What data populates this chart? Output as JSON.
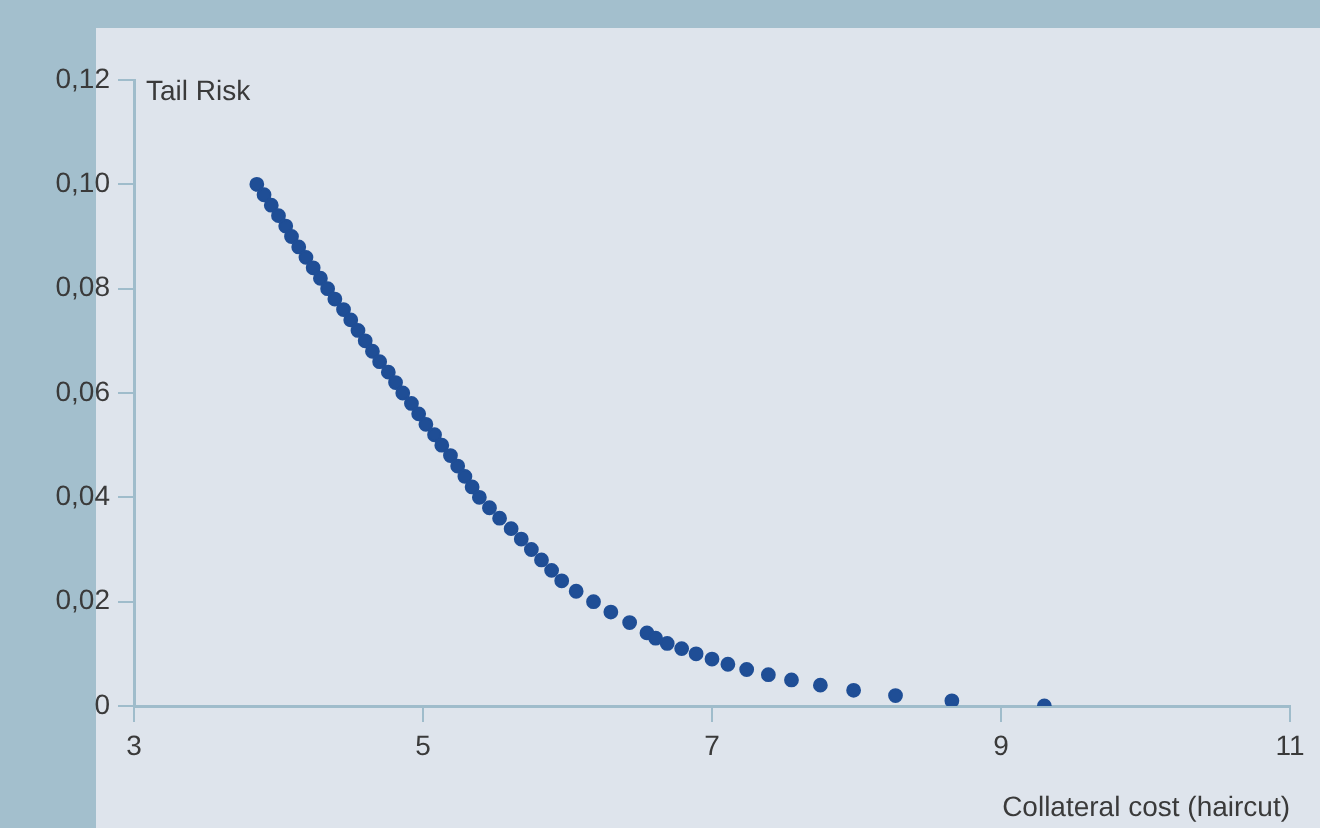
{
  "chart_data": {
    "type": "scatter",
    "xlabel": "Collateral cost (haircut)",
    "ylabel": "Tail Risk",
    "x": [
      3.85,
      3.9,
      3.95,
      4.0,
      4.05,
      4.09,
      4.14,
      4.19,
      4.24,
      4.29,
      4.34,
      4.39,
      4.45,
      4.5,
      4.55,
      4.6,
      4.65,
      4.7,
      4.76,
      4.81,
      4.86,
      4.92,
      4.97,
      5.02,
      5.08,
      5.13,
      5.19,
      5.24,
      5.29,
      5.34,
      5.39,
      5.46,
      5.53,
      5.61,
      5.68,
      5.75,
      5.82,
      5.89,
      5.96,
      6.06,
      6.18,
      6.3,
      6.43,
      6.55,
      6.61,
      6.69,
      6.79,
      6.89,
      7.0,
      7.11,
      7.24,
      7.39,
      7.55,
      7.75,
      7.98,
      8.27,
      8.66,
      9.3
    ],
    "series": [
      {
        "color": "#1f4e96",
        "values": [
          0.1,
          0.098,
          0.096,
          0.094,
          0.092,
          0.09,
          0.088,
          0.086,
          0.084,
          0.082,
          0.08,
          0.078,
          0.076,
          0.074,
          0.072,
          0.07,
          0.068,
          0.066,
          0.064,
          0.062,
          0.06,
          0.058,
          0.056,
          0.054,
          0.052,
          0.05,
          0.048,
          0.046,
          0.044,
          0.042,
          0.04,
          0.038,
          0.036,
          0.034,
          0.032,
          0.03,
          0.028,
          0.026,
          0.024,
          0.022,
          0.02,
          0.018,
          0.016,
          0.014,
          0.013,
          0.012,
          0.011,
          0.01,
          0.009,
          0.008,
          0.007,
          0.006,
          0.005,
          0.004,
          0.003,
          0.002,
          0.001,
          0.0
        ]
      }
    ],
    "xlim": [
      3,
      11
    ],
    "xticks": [
      3,
      5,
      7,
      9,
      11
    ],
    "ylim": [
      0,
      0.12
    ],
    "yticks": [
      0,
      {
        "value": 0.02,
        "label": "0,02"
      },
      {
        "value": 0.04,
        "label": "0,04"
      },
      {
        "value": 0.06,
        "label": "0,06"
      },
      {
        "value": 0.08,
        "label": "0,08"
      },
      {
        "value": 0.1,
        "label": "0,10"
      },
      {
        "value": 0.12,
        "label": "0,12"
      }
    ],
    "grid": false,
    "legend": false,
    "marker": "circle"
  }
}
